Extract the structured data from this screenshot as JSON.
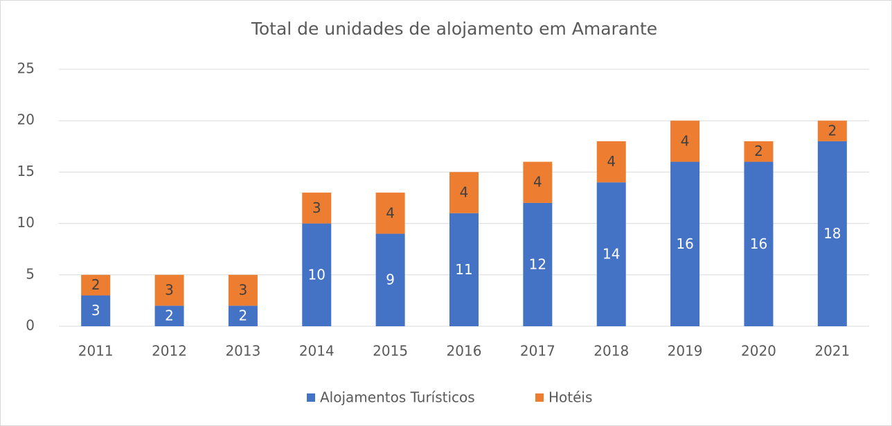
{
  "chart_data": {
    "type": "stacked_bar",
    "title": "Total de unidades de alojamento em Amarante",
    "categories": [
      "2011",
      "2012",
      "2013",
      "2014",
      "2015",
      "2016",
      "2017",
      "2018",
      "2019",
      "2020",
      "2021"
    ],
    "series": [
      {
        "name": "Alojamentos Turísticos",
        "color": "#4472c4",
        "values": [
          3,
          2,
          2,
          10,
          9,
          11,
          12,
          14,
          16,
          16,
          18
        ]
      },
      {
        "name": "Hotéis",
        "color": "#ed7d31",
        "values": [
          2,
          3,
          3,
          3,
          4,
          4,
          4,
          4,
          4,
          2,
          2
        ]
      }
    ],
    "ylim": [
      0,
      25
    ],
    "yticks": [
      0,
      5,
      10,
      15,
      20,
      25
    ],
    "grid": true,
    "legend": "bottom"
  }
}
